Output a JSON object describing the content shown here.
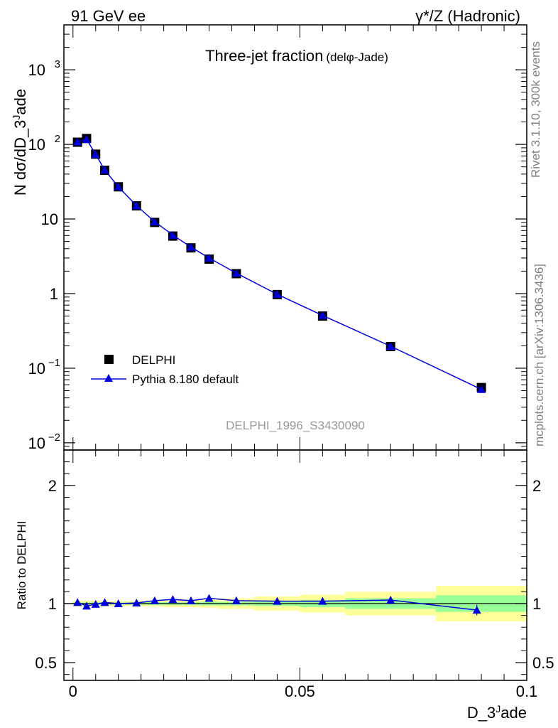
{
  "header": {
    "left": "91 GeV ee",
    "right": "γ*/Z (Hadronic)"
  },
  "side_labels": {
    "rivet": "Rivet 3.1.10,  300k events",
    "mcplots": "mcplots.cern.ch [arXiv:1306.3436]"
  },
  "analysis_id": "DELPHI_1996_S3430090",
  "chart_data": [
    {
      "type": "scatter",
      "panel": "main",
      "title": "Three-jet fraction",
      "title_suffix": "(delφ-Jade)",
      "ylabel": "N dσ/dD_3^Jade",
      "yscale": "log",
      "ylim": [
        0.008,
        4000
      ],
      "xlim": [
        -0.002,
        0.1
      ],
      "yticks": [
        {
          "value": 0.01,
          "label": "10^-2"
        },
        {
          "value": 0.1,
          "label": "10^-1"
        },
        {
          "value": 1,
          "label": "1"
        },
        {
          "value": 10,
          "label": "10"
        },
        {
          "value": 100,
          "label": "10^2"
        },
        {
          "value": 1000,
          "label": "10^3"
        }
      ],
      "legend_placement": "bottom-left",
      "series": [
        {
          "name": "DELPHI",
          "marker": "square",
          "color": "#000000",
          "x": [
            0.001,
            0.003,
            0.005,
            0.007,
            0.01,
            0.014,
            0.018,
            0.022,
            0.026,
            0.03,
            0.036,
            0.045,
            0.055,
            0.07,
            0.09
          ],
          "y": [
            107,
            120,
            74,
            45,
            27,
            15,
            9.0,
            5.9,
            4.1,
            2.9,
            1.85,
            0.97,
            0.5,
            0.195,
            0.055
          ]
        },
        {
          "name": "Pythia 8.180 default",
          "marker": "triangle",
          "color": "#0000dd",
          "x": [
            0.001,
            0.003,
            0.005,
            0.007,
            0.01,
            0.014,
            0.018,
            0.022,
            0.026,
            0.03,
            0.036,
            0.045,
            0.055,
            0.07,
            0.09
          ],
          "y": [
            108,
            117,
            73.5,
            45.5,
            27,
            15.1,
            9.2,
            6.1,
            4.2,
            3.0,
            1.88,
            0.98,
            0.51,
            0.197,
            0.052
          ]
        }
      ]
    },
    {
      "type": "line",
      "panel": "ratio",
      "ylabel": "Ratio to DELPHI",
      "xlabel": "D_3^Jade",
      "ylim": [
        0.35,
        2.3
      ],
      "xlim": [
        -0.002,
        0.1
      ],
      "xticks": [
        {
          "value": 0,
          "label": "0"
        },
        {
          "value": 0.05,
          "label": "0.05"
        },
        {
          "value": 0.1,
          "label": "0.1"
        }
      ],
      "yticks": [
        {
          "value": 0.5,
          "label": "0.5"
        },
        {
          "value": 1,
          "label": "1"
        },
        {
          "value": 2,
          "label": "2"
        }
      ],
      "bands": [
        {
          "x0": 0.0,
          "x1": 0.002,
          "stat": 0.01,
          "tot": 0.025
        },
        {
          "x0": 0.002,
          "x1": 0.004,
          "stat": 0.01,
          "tot": 0.025
        },
        {
          "x0": 0.004,
          "x1": 0.006,
          "stat": 0.01,
          "tot": 0.025
        },
        {
          "x0": 0.006,
          "x1": 0.008,
          "stat": 0.01,
          "tot": 0.025
        },
        {
          "x0": 0.008,
          "x1": 0.012,
          "stat": 0.01,
          "tot": 0.022
        },
        {
          "x0": 0.012,
          "x1": 0.016,
          "stat": 0.01,
          "tot": 0.022
        },
        {
          "x0": 0.016,
          "x1": 0.02,
          "stat": 0.012,
          "tot": 0.025
        },
        {
          "x0": 0.02,
          "x1": 0.024,
          "stat": 0.012,
          "tot": 0.03
        },
        {
          "x0": 0.024,
          "x1": 0.028,
          "stat": 0.012,
          "tot": 0.032
        },
        {
          "x0": 0.028,
          "x1": 0.032,
          "stat": 0.015,
          "tot": 0.035
        },
        {
          "x0": 0.032,
          "x1": 0.04,
          "stat": 0.015,
          "tot": 0.045
        },
        {
          "x0": 0.04,
          "x1": 0.05,
          "stat": 0.02,
          "tot": 0.06
        },
        {
          "x0": 0.05,
          "x1": 0.06,
          "stat": 0.03,
          "tot": 0.075
        },
        {
          "x0": 0.06,
          "x1": 0.08,
          "stat": 0.045,
          "tot": 0.1
        },
        {
          "x0": 0.08,
          "x1": 0.1,
          "stat": 0.07,
          "tot": 0.15
        }
      ],
      "series": [
        {
          "name": "Pythia 8.180 default",
          "marker": "triangle",
          "color": "#0000dd",
          "x": [
            0.001,
            0.003,
            0.005,
            0.007,
            0.01,
            0.014,
            0.018,
            0.022,
            0.026,
            0.03,
            0.036,
            0.045,
            0.055,
            0.07,
            0.089
          ],
          "y": [
            1.01,
            0.98,
            0.995,
            1.01,
            1.0,
            1.005,
            1.025,
            1.035,
            1.025,
            1.045,
            1.025,
            1.02,
            1.02,
            1.03,
            0.945
          ],
          "err": [
            0,
            0,
            0,
            0,
            0,
            0,
            0,
            0,
            0,
            0,
            0,
            0,
            0.02,
            0.02,
            0.045
          ]
        }
      ],
      "colors": {
        "stat_band": "#99ff99",
        "tot_band": "#ffff99",
        "reference_line": "#000000"
      }
    }
  ]
}
